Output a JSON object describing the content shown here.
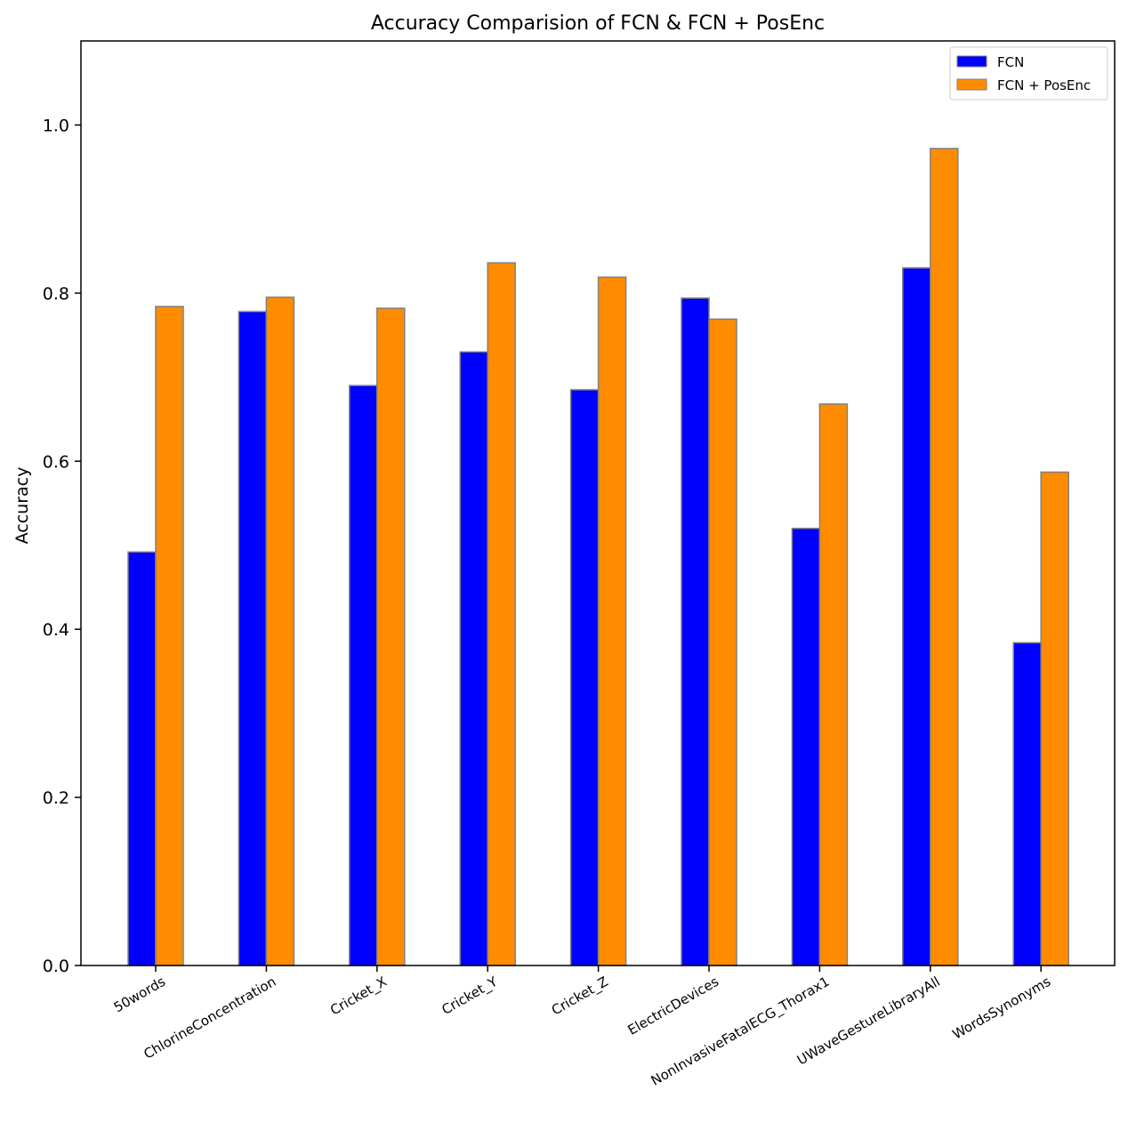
{
  "chart_data": {
    "type": "bar",
    "title": "Accuracy Comparision of FCN & FCN + PosEnc",
    "xlabel": "",
    "ylabel": "Accuracy",
    "ylim": [
      0,
      1.1
    ],
    "yticks": [
      0.0,
      0.2,
      0.4,
      0.6,
      0.8,
      1.0
    ],
    "ytick_labels": [
      "0.0",
      "0.2",
      "0.4",
      "0.6",
      "0.8",
      "1.0"
    ],
    "grid": false,
    "legend_position": "top-right",
    "categories": [
      "50words",
      "ChlorineConcentration",
      "Cricket_X",
      "Cricket_Y",
      "Cricket_Z",
      "ElectricDevices",
      "NonInvasiveFatalECG_Thorax1",
      "UWaveGestureLibraryAll",
      "WordsSynonyms"
    ],
    "series": [
      {
        "name": "FCN",
        "color": "#0000ff",
        "values": [
          0.492,
          0.778,
          0.69,
          0.73,
          0.685,
          0.794,
          0.52,
          0.83,
          0.384
        ]
      },
      {
        "name": "FCN + PosEnc",
        "color": "#ff8c00",
        "values": [
          0.784,
          0.795,
          0.782,
          0.836,
          0.819,
          0.769,
          0.668,
          0.972,
          0.587
        ]
      }
    ],
    "bar_edge_color": "#808080"
  }
}
